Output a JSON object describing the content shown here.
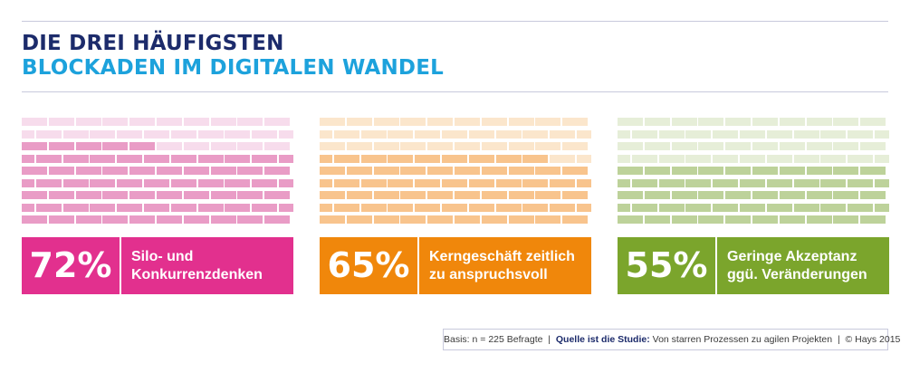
{
  "title": {
    "line1": "DIE DREI HÄUFIGSTEN",
    "line2": "BLOCKADEN IM DIGITALEN WANDEL"
  },
  "chart_data": [
    {
      "type": "bar",
      "value": 72,
      "value_label": "72%",
      "label_line1": "Silo- und",
      "label_line2": "Konkurrenzdenken",
      "color": "#e2308e",
      "brick_color": "#e99cc6",
      "brick_light": "#f7dcec"
    },
    {
      "type": "bar",
      "value": 65,
      "value_label": "65%",
      "label_line1": "Kerngeschäft zeitlich",
      "label_line2": "zu anspruchsvoll",
      "color": "#f0870b",
      "brick_color": "#f8c48d",
      "brick_light": "#fbe6cc"
    },
    {
      "type": "bar",
      "value": 55,
      "value_label": "55%",
      "label_line1": "Geringe Akzeptanz",
      "label_line2": "ggü. Veränderungen",
      "color": "#7ba52c",
      "brick_color": "#bdd29a",
      "brick_light": "#e6eed8"
    }
  ],
  "footer": {
    "basis": "Basis: n = 225 Befragte",
    "sep1": "|",
    "source_label": "Quelle ist die Studie:",
    "source_text": "Von starren Prozessen zu agilen Projekten",
    "sep2": "|",
    "copyright": "© Hays 2015"
  }
}
